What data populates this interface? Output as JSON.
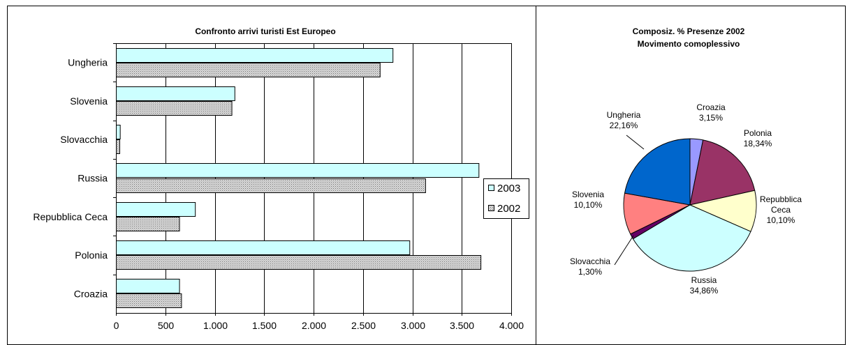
{
  "chart_data": [
    {
      "type": "bar",
      "orientation": "horizontal",
      "title": "Confronto arrivi turisti Est Europeo",
      "categories": [
        "Ungheria",
        "Slovenia",
        "Slovacchia",
        "Russia",
        "Repubblica Ceca",
        "Polonia",
        "Croazia"
      ],
      "series": [
        {
          "name": "2003",
          "values": [
            2800,
            1200,
            40,
            3670,
            800,
            2970,
            640
          ],
          "color": "#ccffff",
          "pattern": "solid"
        },
        {
          "name": "2002",
          "values": [
            2670,
            1170,
            35,
            3130,
            640,
            3690,
            660
          ],
          "color": "#c0c0c0",
          "pattern": "dotted"
        }
      ],
      "xlim": [
        0,
        4000
      ],
      "xticks": [
        "0",
        "500",
        "1.000",
        "1.500",
        "2.000",
        "2.500",
        "3.000",
        "3.500",
        "4.000"
      ],
      "grid": true,
      "legend": "right"
    },
    {
      "type": "pie",
      "title_lines": [
        "Composiz. % Presenze 2002",
        "Movimento comoplessivo"
      ],
      "slices": [
        {
          "name": "Croazia",
          "value": 3.15,
          "label": "3,15%",
          "color": "#9999ff"
        },
        {
          "name": "Polonia",
          "value": 18.34,
          "label": "18,34%",
          "color": "#993366"
        },
        {
          "name_lines": [
            "Repubblica",
            "Ceca"
          ],
          "value": 10.1,
          "label": "10,10%",
          "color": "#ffffcc"
        },
        {
          "name": "Russia",
          "value": 34.86,
          "label": "34,86%",
          "color": "#ccffff"
        },
        {
          "name": "Slovacchia",
          "value": 1.3,
          "label": "1,30%",
          "color": "#660066"
        },
        {
          "name": "Slovenia",
          "value": 10.1,
          "label": "10,10%",
          "color": "#ff8080"
        },
        {
          "name": "Ungheria",
          "value": 22.16,
          "label": "22,16%",
          "color": "#0066cc"
        }
      ]
    }
  ]
}
